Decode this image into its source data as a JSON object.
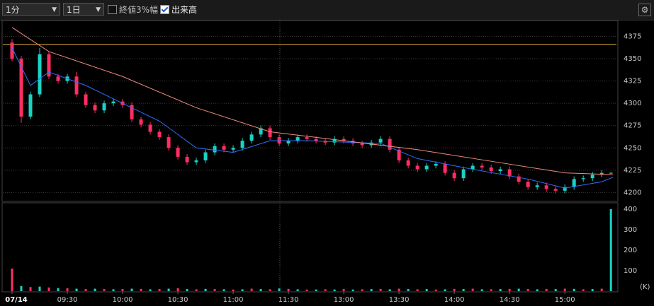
{
  "toolbar": {
    "interval": "1分",
    "period": "1日",
    "close_range": {
      "label": "終値3%幅",
      "checked": false
    },
    "volume_toggle": {
      "label": "出来高",
      "checked": true
    }
  },
  "chart_data": [
    {
      "type": "candlestick",
      "up_color": "#19d3c5",
      "down_color": "#ff2e63",
      "x": [
        0,
        5,
        10,
        15,
        20,
        25,
        30,
        35,
        40,
        45,
        50,
        55,
        60,
        65,
        70,
        75,
        80,
        85,
        90,
        95,
        100,
        105,
        110,
        115,
        120,
        125,
        130,
        135,
        140,
        145,
        150,
        155,
        160,
        165,
        170,
        175,
        180,
        185,
        190,
        195,
        200,
        205,
        210,
        215,
        220,
        225,
        230,
        235,
        240,
        245,
        250,
        255,
        260,
        265,
        270,
        275,
        280,
        285,
        290,
        295,
        300,
        305,
        310,
        315,
        320,
        325
      ],
      "open": [
        4368,
        4350,
        4285,
        4310,
        4355,
        4330,
        4325,
        4330,
        4310,
        4298,
        4292,
        4300,
        4302,
        4298,
        4282,
        4276,
        4268,
        4262,
        4250,
        4240,
        4234,
        4236,
        4245,
        4252,
        4248,
        4250,
        4258,
        4265,
        4272,
        4262,
        4255,
        4258,
        4262,
        4260,
        4258,
        4256,
        4260,
        4258,
        4255,
        4253,
        4256,
        4260,
        4248,
        4236,
        4230,
        4226,
        4230,
        4232,
        4222,
        4216,
        4226,
        4230,
        4228,
        4224,
        4226,
        4218,
        4212,
        4206,
        4208,
        4204,
        4202,
        4206,
        4215,
        4216,
        4220,
        4222
      ],
      "high": [
        4372,
        4353,
        4313,
        4362,
        4358,
        4333,
        4333,
        4335,
        4313,
        4301,
        4303,
        4305,
        4305,
        4301,
        4285,
        4279,
        4271,
        4265,
        4253,
        4243,
        4239,
        4248,
        4255,
        4255,
        4253,
        4261,
        4268,
        4275,
        4275,
        4265,
        4261,
        4265,
        4265,
        4263,
        4261,
        4263,
        4263,
        4261,
        4258,
        4259,
        4263,
        4263,
        4251,
        4239,
        4233,
        4233,
        4235,
        4235,
        4225,
        4229,
        4233,
        4233,
        4231,
        4229,
        4229,
        4221,
        4215,
        4211,
        4211,
        4207,
        4209,
        4218,
        4219,
        4223,
        4225,
        4223
      ],
      "low": [
        4347,
        4278,
        4282,
        4307,
        4327,
        4322,
        4322,
        4307,
        4295,
        4289,
        4289,
        4297,
        4295,
        4279,
        4273,
        4265,
        4259,
        4247,
        4237,
        4231,
        4231,
        4233,
        4242,
        4245,
        4245,
        4247,
        4255,
        4262,
        4259,
        4252,
        4252,
        4255,
        4257,
        4255,
        4253,
        4253,
        4255,
        4252,
        4250,
        4250,
        4253,
        4245,
        4233,
        4227,
        4223,
        4223,
        4227,
        4219,
        4213,
        4213,
        4223,
        4225,
        4221,
        4221,
        4215,
        4209,
        4203,
        4203,
        4201,
        4199,
        4199,
        4203,
        4212,
        4213,
        4217,
        4221
      ],
      "close": [
        4350,
        4285,
        4310,
        4355,
        4330,
        4325,
        4330,
        4310,
        4298,
        4292,
        4300,
        4302,
        4298,
        4282,
        4276,
        4268,
        4262,
        4250,
        4240,
        4234,
        4236,
        4245,
        4252,
        4248,
        4250,
        4258,
        4265,
        4272,
        4262,
        4255,
        4258,
        4262,
        4260,
        4258,
        4256,
        4260,
        4258,
        4255,
        4253,
        4256,
        4260,
        4248,
        4236,
        4230,
        4226,
        4230,
        4232,
        4222,
        4216,
        4226,
        4230,
        4228,
        4224,
        4226,
        4218,
        4212,
        4206,
        4208,
        4204,
        4202,
        4206,
        4215,
        4216,
        4220,
        4222,
        4222
      ],
      "series": [
        {
          "color": "#2f6fff",
          "x": [
            0,
            10,
            20,
            40,
            60,
            80,
            100,
            120,
            140,
            160,
            200,
            220,
            250,
            280,
            300,
            320,
            326
          ],
          "values": [
            4362,
            4320,
            4335,
            4320,
            4300,
            4280,
            4250,
            4245,
            4258,
            4258,
            4255,
            4238,
            4226,
            4215,
            4205,
            4212,
            4217
          ]
        },
        {
          "color": "#f08a7a",
          "x": [
            0,
            20,
            60,
            100,
            140,
            180,
            220,
            260,
            300,
            326
          ],
          "values": [
            4385,
            4358,
            4330,
            4295,
            4268,
            4258,
            4248,
            4235,
            4222,
            4220
          ]
        }
      ],
      "reference_line": {
        "value": 4366,
        "color": "#e8b23a"
      },
      "xlim": [
        -5,
        328
      ],
      "ylim": [
        4190,
        4392
      ],
      "yticks": [
        4200,
        4225,
        4250,
        4275,
        4300,
        4325,
        4350,
        4375
      ],
      "grid": true
    },
    {
      "type": "bar",
      "up_color": "#19d3c5",
      "down_color": "#ff2e63",
      "x": [
        0,
        5,
        10,
        15,
        20,
        25,
        30,
        35,
        40,
        45,
        50,
        55,
        60,
        65,
        70,
        75,
        80,
        85,
        90,
        95,
        100,
        105,
        110,
        115,
        120,
        125,
        130,
        135,
        140,
        145,
        150,
        155,
        160,
        165,
        170,
        175,
        180,
        185,
        190,
        195,
        200,
        205,
        210,
        215,
        220,
        225,
        230,
        235,
        240,
        245,
        250,
        255,
        260,
        265,
        270,
        275,
        280,
        285,
        290,
        295,
        300,
        305,
        310,
        315,
        320,
        325
      ],
      "values": [
        110,
        25,
        20,
        22,
        18,
        15,
        14,
        12,
        10,
        12,
        10,
        9,
        10,
        12,
        11,
        9,
        10,
        12,
        14,
        10,
        9,
        11,
        10,
        9,
        8,
        9,
        12,
        10,
        9,
        13,
        11,
        9,
        8,
        8,
        9,
        8,
        10,
        8,
        9,
        10,
        11,
        9,
        12,
        10,
        9,
        10,
        8,
        9,
        11,
        10,
        12,
        9,
        9,
        10,
        11,
        12,
        10,
        9,
        11,
        10,
        12,
        11,
        9,
        10,
        12,
        400
      ],
      "unit_label": "(K)",
      "xlim": [
        -5,
        328
      ],
      "ylim": [
        0,
        427
      ],
      "yticks": [
        100,
        200,
        300,
        400
      ],
      "xticks": [
        {
          "value": 0,
          "label": "07/14"
        },
        {
          "value": 30,
          "label": "09:30"
        },
        {
          "value": 60,
          "label": "10:00"
        },
        {
          "value": 90,
          "label": "10:30"
        },
        {
          "value": 120,
          "label": "11:00"
        },
        {
          "value": 150,
          "label": "11:30"
        },
        {
          "value": 180,
          "label": "13:00"
        },
        {
          "value": 210,
          "label": "13:30"
        },
        {
          "value": 240,
          "label": "14:00"
        },
        {
          "value": 270,
          "label": "14:30"
        },
        {
          "value": 300,
          "label": "15:00"
        }
      ]
    }
  ]
}
